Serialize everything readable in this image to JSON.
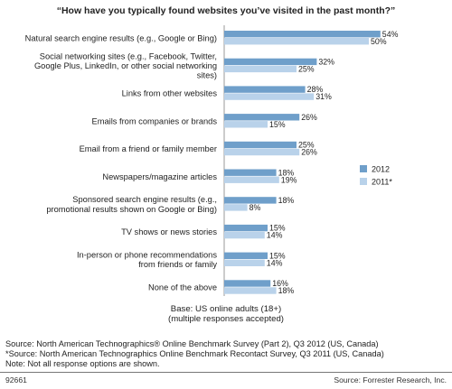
{
  "chart_data": {
    "type": "bar",
    "orientation": "horizontal",
    "title": "“How have you typically found websites you’ve visited in the past month?”",
    "categories": [
      [
        "Natural search engine results (e.g., Google or Bing)"
      ],
      [
        "Social networking sites (e.g., Facebook, Twitter,",
        "Google Plus, LinkedIn, or other social networking",
        "sites)"
      ],
      [
        "Links from other websites"
      ],
      [
        "Emails from companies or brands"
      ],
      [
        "Email from a friend or family member"
      ],
      [
        "Newspapers/magazine articles"
      ],
      [
        "Sponsored search engine results (e.g.,",
        "promotional results shown on Google or Bing)"
      ],
      [
        "TV shows or news stories"
      ],
      [
        "In-person or phone recommendations",
        "from friends or family"
      ],
      [
        "None of the above"
      ]
    ],
    "series": [
      {
        "name": "2012",
        "color": "#6f9fca",
        "values": [
          54,
          32,
          28,
          26,
          25,
          18,
          18,
          15,
          15,
          16
        ],
        "labels": [
          "54%",
          "32%",
          "28%",
          "26%",
          "25%",
          "18%",
          "18%",
          "15%",
          "15%",
          "16%"
        ]
      },
      {
        "name": "2011*",
        "color": "#b9d2ea",
        "values": [
          50,
          25,
          31,
          15,
          26,
          19,
          8,
          14,
          14,
          18
        ],
        "labels": [
          "50%",
          "25%",
          "31%",
          "15%",
          "26%",
          "19%",
          "8%",
          "14%",
          "14%",
          "18%"
        ]
      }
    ],
    "xlim": [
      0,
      54
    ],
    "grid": false,
    "legend_position": "right"
  },
  "base_note": [
    "Base: US online adults (18+)",
    "(multiple responses accepted)"
  ],
  "source_notes": [
    "Source: North American Technographics® Online Benchmark Survey (Part 2), Q3 2012 (US, Canada)",
    "*Source: North American Technographics Online Benchmark Recontact Survey, Q3 2011 (US, Canada)",
    "Note: Not all response options are shown."
  ],
  "footer": {
    "id": "92661",
    "credit": "Source: Forrester Research, Inc."
  }
}
